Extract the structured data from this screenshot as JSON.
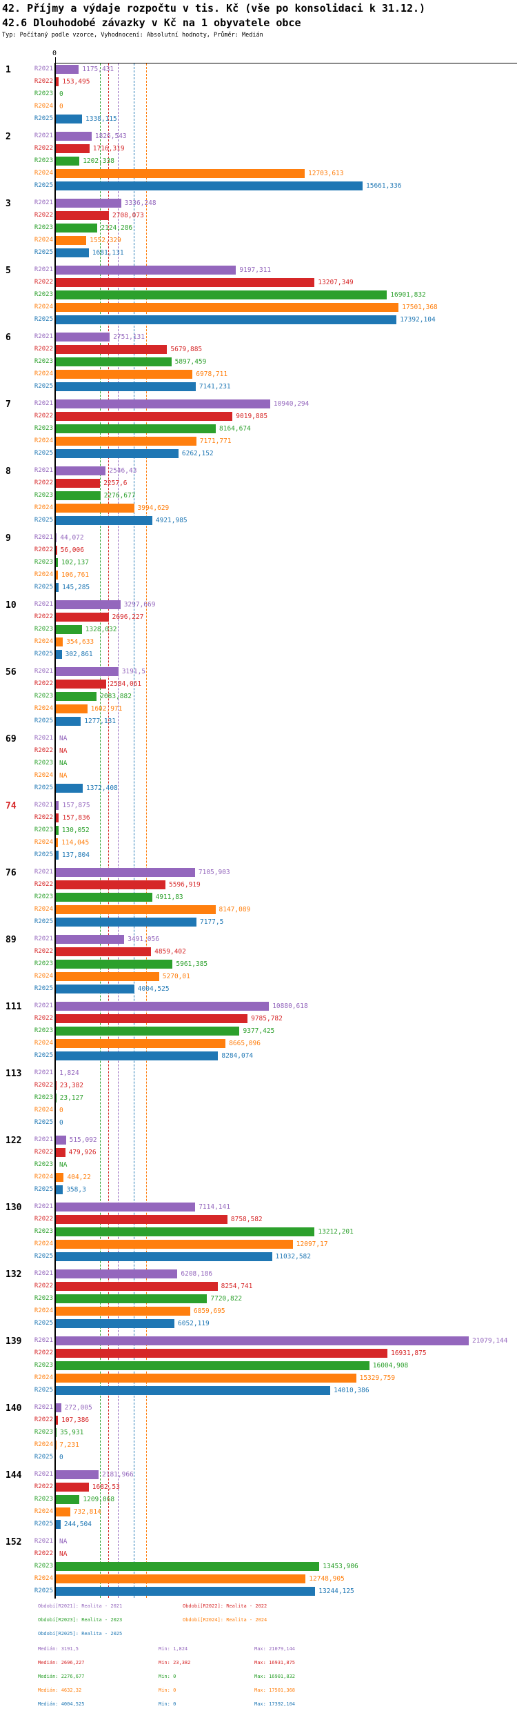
{
  "header": {
    "title": "42. Příjmy a výdaje rozpočtu v tis. Kč (vše po konsolidaci k 31.12.)",
    "subtitle": "42.6 Dlouhodobé závazky v Kč na 1 obyvatele obce",
    "meta": "Typ: Počítaný podle vzorce, Vyhodnocení: Absolutní hodnoty, Průměr: Medián"
  },
  "axis": {
    "zero_label": "0"
  },
  "stats_labels": {
    "median": "Medián",
    "min": "Min",
    "max": "Max"
  },
  "series": [
    {
      "id": "R2021",
      "label": "R2021",
      "color": "#9467bd",
      "legend": "Období[R2021]: Realita - 2021",
      "median": 3191.5,
      "min": 1.824,
      "max": 21079.144
    },
    {
      "id": "R2022",
      "label": "R2022",
      "color": "#d62728",
      "legend": "Období[R2022]: Realita - 2022",
      "median": 2696.227,
      "min": 23.382,
      "max": 16931.875
    },
    {
      "id": "R2023",
      "label": "R2023",
      "color": "#2ca02c",
      "legend": "Období[R2023]: Realita - 2023",
      "median": 2276.677,
      "min": 0,
      "max": 16901.832
    },
    {
      "id": "R2024",
      "label": "R2024",
      "color": "#ff7f0e",
      "legend": "Období[R2024]: Realita - 2024",
      "median": 4632.32,
      "min": 0,
      "max": 17501.368
    },
    {
      "id": "R2025",
      "label": "R2025",
      "color": "#1f77b4",
      "legend": "Období[R2025]: Realita - 2025",
      "median": 4004.525,
      "min": 0,
      "max": 17392.104
    }
  ],
  "chart_data": {
    "type": "bar",
    "orientation": "horizontal",
    "title": "42.6 Dlouhodobé závazky v Kč na 1 obyvatele obce",
    "xlabel": "Kč na 1 obyvatele obce",
    "xlim": [
      0,
      23578
    ],
    "grid": false,
    "legend_position": "bottom",
    "series_order": [
      "R2021",
      "R2022",
      "R2023",
      "R2024",
      "R2025"
    ],
    "highlighted_category": "74",
    "na_text": "NA",
    "groups": [
      {
        "id": "1",
        "values": [
          1175.431,
          153.495,
          0,
          0,
          1338.115
        ]
      },
      {
        "id": "2",
        "values": [
          1826.543,
          1716.319,
          1202.338,
          12703.613,
          15661.336
        ]
      },
      {
        "id": "3",
        "values": [
          3336.248,
          2708.073,
          2124.286,
          1552.329,
          1681.131
        ]
      },
      {
        "id": "5",
        "values": [
          9197.311,
          13207.349,
          16901.832,
          17501.368,
          17392.104
        ]
      },
      {
        "id": "6",
        "values": [
          2751.131,
          5679.885,
          5897.459,
          6978.711,
          7141.231
        ]
      },
      {
        "id": "7",
        "values": [
          10940.294,
          9019.885,
          8164.674,
          7171.771,
          6262.152
        ]
      },
      {
        "id": "8",
        "values": [
          2546.43,
          2257.6,
          2276.677,
          3994.629,
          4921.985
        ]
      },
      {
        "id": "9",
        "values": [
          44.072,
          56.006,
          102.137,
          106.761,
          145.285
        ]
      },
      {
        "id": "10",
        "values": [
          3297.669,
          2696.227,
          1328.032,
          354.633,
          302.861
        ]
      },
      {
        "id": "56",
        "values": [
          3191.5,
          2584.061,
          2083.882,
          1602.971,
          1277.131
        ]
      },
      {
        "id": "69",
        "values": [
          "NA",
          "NA",
          "NA",
          "NA",
          1372.408
        ]
      },
      {
        "id": "74",
        "values": [
          157.875,
          157.836,
          130.052,
          114.045,
          137.804
        ]
      },
      {
        "id": "76",
        "values": [
          7105.903,
          5596.919,
          4911.83,
          8147.089,
          7177.5
        ]
      },
      {
        "id": "89",
        "values": [
          3491.056,
          4859.402,
          5961.385,
          5270.01,
          4004.525
        ]
      },
      {
        "id": "111",
        "values": [
          10880.618,
          9785.782,
          9377.425,
          8665.096,
          8284.074
        ]
      },
      {
        "id": "113",
        "values": [
          1.824,
          23.382,
          23.127,
          0,
          0
        ]
      },
      {
        "id": "122",
        "values": [
          515.092,
          479.926,
          "NA",
          404.22,
          358.3
        ]
      },
      {
        "id": "130",
        "values": [
          7114.141,
          8758.582,
          13212.201,
          12097.17,
          11032.582
        ]
      },
      {
        "id": "132",
        "values": [
          6208.186,
          8254.741,
          7720.822,
          6859.695,
          6052.119
        ]
      },
      {
        "id": "139",
        "values": [
          21079.144,
          16931.875,
          16004.908,
          15329.759,
          14010.386
        ]
      },
      {
        "id": "140",
        "values": [
          272.005,
          107.386,
          35.931,
          7.231,
          0
        ]
      },
      {
        "id": "144",
        "values": [
          2181.966,
          1682.53,
          1209.068,
          732.814,
          244.504
        ]
      },
      {
        "id": "152",
        "values": [
          "NA",
          "NA",
          13453.906,
          12748.905,
          13244.125
        ]
      }
    ]
  }
}
